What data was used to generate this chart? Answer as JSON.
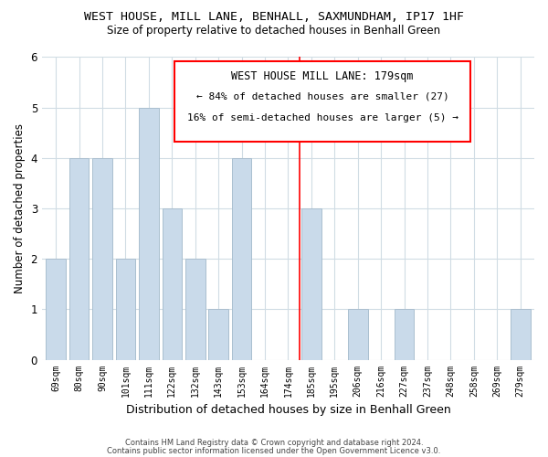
{
  "title": "WEST HOUSE, MILL LANE, BENHALL, SAXMUNDHAM, IP17 1HF",
  "subtitle": "Size of property relative to detached houses in Benhall Green",
  "xlabel": "Distribution of detached houses by size in Benhall Green",
  "ylabel": "Number of detached properties",
  "categories": [
    "69sqm",
    "80sqm",
    "90sqm",
    "101sqm",
    "111sqm",
    "122sqm",
    "132sqm",
    "143sqm",
    "153sqm",
    "164sqm",
    "174sqm",
    "185sqm",
    "195sqm",
    "206sqm",
    "216sqm",
    "227sqm",
    "237sqm",
    "248sqm",
    "258sqm",
    "269sqm",
    "279sqm"
  ],
  "values": [
    2,
    4,
    4,
    2,
    5,
    3,
    2,
    1,
    4,
    0,
    0,
    3,
    0,
    1,
    0,
    1,
    0,
    0,
    0,
    0,
    1
  ],
  "bar_color": "#c9daea",
  "bar_edge_color": "#aabfcf",
  "reference_line_x": 10.5,
  "reference_label": "WEST HOUSE MILL LANE: 179sqm",
  "annotation_line1": "← 84% of detached houses are smaller (27)",
  "annotation_line2": "16% of semi-detached houses are larger (5) →",
  "ylim": [
    0,
    6
  ],
  "yticks": [
    0,
    1,
    2,
    3,
    4,
    5,
    6
  ],
  "footer_line1": "Contains HM Land Registry data © Crown copyright and database right 2024.",
  "footer_line2": "Contains public sector information licensed under the Open Government Licence v3.0.",
  "background_color": "#ffffff",
  "grid_color": "#d0dce4"
}
